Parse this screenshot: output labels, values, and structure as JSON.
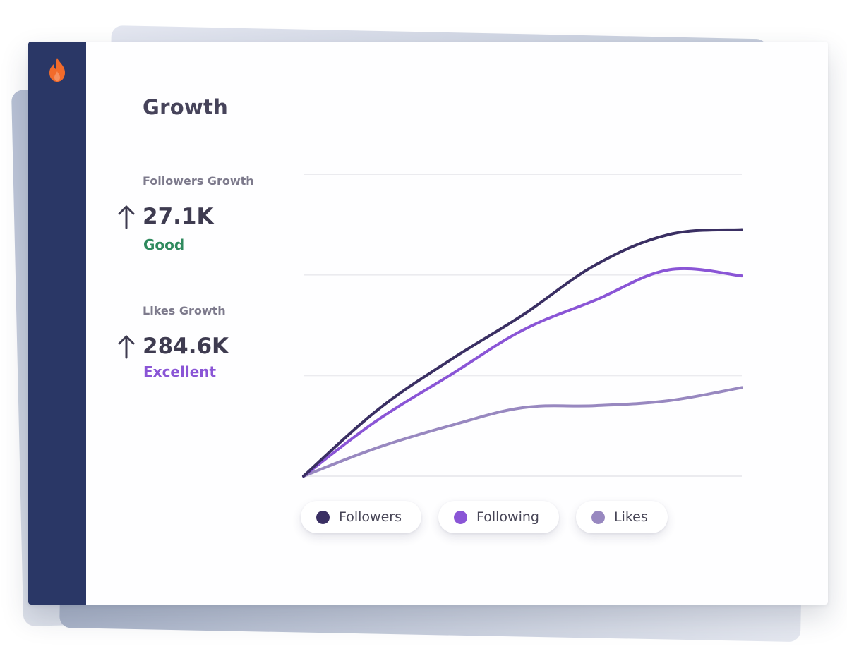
{
  "title": "Growth",
  "stats": [
    {
      "label": "Followers Growth",
      "value": "27.1K",
      "rating": "Good",
      "rating_color": "#2f8a5e",
      "trend": "arrow-up-icon"
    },
    {
      "label": "Likes Growth",
      "value": "284.6K",
      "rating": "Excellent",
      "rating_color": "#8a55d6",
      "trend": "arrow-up-icon"
    }
  ],
  "colors": {
    "sidebar": "#2a3766",
    "logo": "#f26b2b",
    "gridline": "#ebebef"
  },
  "chart_data": {
    "type": "line",
    "x": [
      0,
      1,
      2,
      3,
      4,
      5,
      6
    ],
    "ylim": [
      0,
      3
    ],
    "grid": true,
    "legend_position": "bottom",
    "series": [
      {
        "name": "Followers",
        "color": "#3a2f63",
        "values": [
          0,
          0.65,
          1.15,
          1.6,
          2.1,
          2.4,
          2.45
        ]
      },
      {
        "name": "Following",
        "color": "#8a55d6",
        "values": [
          0,
          0.55,
          1.0,
          1.45,
          1.75,
          2.05,
          1.99
        ]
      },
      {
        "name": "Likes",
        "color": "#9888c0",
        "values": [
          0,
          0.28,
          0.5,
          0.68,
          0.7,
          0.75,
          0.88
        ]
      }
    ]
  }
}
